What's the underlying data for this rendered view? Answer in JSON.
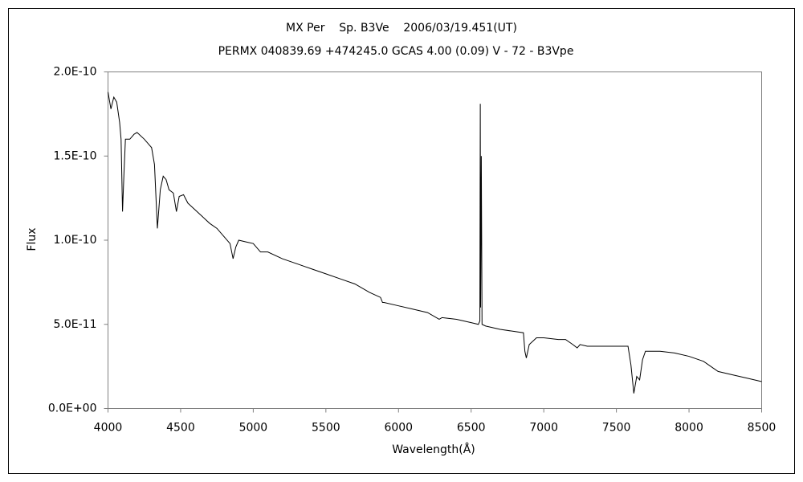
{
  "chart_data": {
    "type": "line",
    "title": "MX Per    Sp. B3Ve    2006/03/19.451(UT)",
    "subtitle": "PERMX 040839.69 +474245.0 GCAS 4.00 (0.09) V - 72 - B3Vpe",
    "x_label": "Wavelength(Å)",
    "y_label": "Flux",
    "color": "#000000",
    "xlim": [
      4000,
      8500
    ],
    "xticks": [
      4000,
      4500,
      5000,
      5500,
      6000,
      6500,
      7000,
      7500,
      8000,
      8500
    ],
    "ylim": [
      0,
      2e-10
    ],
    "yticks": [
      {
        "value": 0,
        "label": "0.0E+00"
      },
      {
        "value": 5e-11,
        "label": "5.0E-11"
      },
      {
        "value": 1e-10,
        "label": "1.0E-10"
      },
      {
        "value": 1.5e-10,
        "label": "1.5E-10"
      },
      {
        "value": 2e-10,
        "label": "2.0E-10"
      }
    ],
    "grid": false,
    "x": [
      4000,
      4020,
      4040,
      4060,
      4080,
      4090,
      4100,
      4110,
      4120,
      4150,
      4180,
      4200,
      4250,
      4280,
      4300,
      4320,
      4340,
      4360,
      4380,
      4400,
      4420,
      4450,
      4471,
      4490,
      4520,
      4550,
      4600,
      4650,
      4700,
      4750,
      4800,
      4840,
      4861,
      4880,
      4900,
      4950,
      5000,
      5050,
      5100,
      5200,
      5300,
      5400,
      5500,
      5600,
      5700,
      5800,
      5876,
      5890,
      5900,
      6000,
      6100,
      6200,
      6280,
      6300,
      6400,
      6500,
      6550,
      6560,
      6563,
      6565,
      6570,
      6575,
      6600,
      6700,
      6860,
      6870,
      6880,
      6900,
      6950,
      7000,
      7100,
      7150,
      7200,
      7230,
      7250,
      7300,
      7400,
      7500,
      7580,
      7600,
      7620,
      7640,
      7660,
      7680,
      7700,
      7800,
      7900,
      8000,
      8100,
      8200,
      8300,
      8400,
      8500
    ],
    "values": [
      1.88e-10,
      1.78e-10,
      1.85e-10,
      1.82e-10,
      1.7e-10,
      1.6e-10,
      1.17e-10,
      1.4e-10,
      1.6e-10,
      1.6e-10,
      1.63e-10,
      1.64e-10,
      1.6e-10,
      1.57e-10,
      1.55e-10,
      1.45e-10,
      1.07e-10,
      1.3e-10,
      1.38e-10,
      1.36e-10,
      1.3e-10,
      1.28e-10,
      1.17e-10,
      1.26e-10,
      1.27e-10,
      1.22e-10,
      1.18e-10,
      1.14e-10,
      1.1e-10,
      1.07e-10,
      1.02e-10,
      9.8e-11,
      8.9e-11,
      9.6e-11,
      1e-10,
      9.9e-11,
      9.8e-11,
      9.3e-11,
      9.3e-11,
      8.9e-11,
      8.6e-11,
      8.3e-11,
      8e-11,
      7.7e-11,
      7.4e-11,
      6.9e-11,
      6.6e-11,
      6.3e-11,
      6.3e-11,
      6.1e-11,
      5.9e-11,
      5.7e-11,
      5.3e-11,
      5.4e-11,
      5.3e-11,
      5.1e-11,
      5e-11,
      5.2e-11,
      1.81e-10,
      6e-11,
      1.5e-10,
      5e-11,
      4.9e-11,
      4.7e-11,
      4.5e-11,
      3.4e-11,
      3e-11,
      3.8e-11,
      4.2e-11,
      4.2e-11,
      4.1e-11,
      4.1e-11,
      3.8e-11,
      3.6e-11,
      3.8e-11,
      3.7e-11,
      3.7e-11,
      3.7e-11,
      3.7e-11,
      2.6e-11,
      9e-12,
      1.9e-11,
      1.7e-11,
      2.9e-11,
      3.4e-11,
      3.4e-11,
      3.3e-11,
      3.1e-11,
      2.8e-11,
      2.2e-11,
      2e-11,
      1.8e-11,
      1.6e-11
    ]
  }
}
